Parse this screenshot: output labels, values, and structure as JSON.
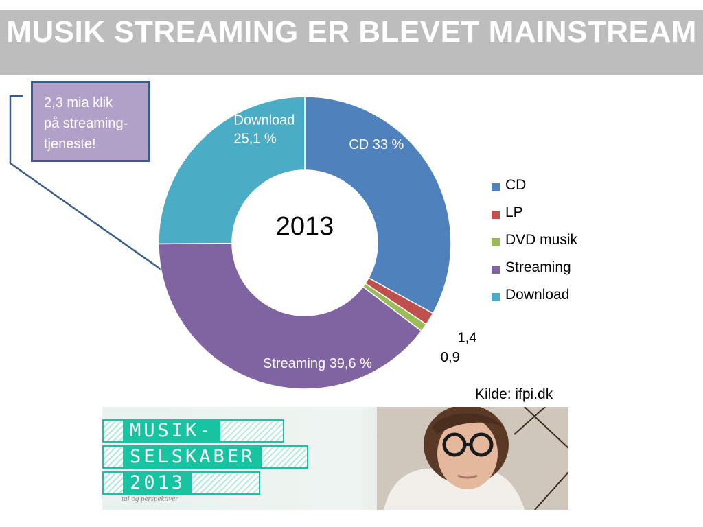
{
  "header": {
    "title": "MUSIK STREAMING ER BLEVET MAINSTREAM"
  },
  "callout": {
    "lines": [
      "2,3 mia klik",
      "på streaming-",
      "tjeneste!"
    ]
  },
  "chart_data": {
    "type": "pie",
    "style": "donut",
    "center_label": "2013",
    "categories": [
      "CD",
      "LP",
      "DVD musik",
      "Streaming",
      "Download"
    ],
    "values": [
      33,
      1.4,
      0.9,
      39.6,
      25.1
    ],
    "colors": [
      "#4f81bd",
      "#c0504d",
      "#9bbb59",
      "#8064a2",
      "#4bacc6"
    ],
    "data_labels": [
      "CD 33 %",
      "1,4",
      "0,9",
      "Streaming 39,6 %",
      "Download 25,1 %"
    ],
    "legend": {
      "position": "right",
      "entries": [
        "CD",
        "LP",
        "DVD musik",
        "Streaming",
        "Download"
      ]
    }
  },
  "source": "Kilde: ifpi.dk",
  "banner": {
    "words": [
      "MUSIK-",
      "SELSKABER",
      "2013"
    ],
    "tagline": "tal og perspektiver",
    "accent_color": "#17c3a0"
  }
}
